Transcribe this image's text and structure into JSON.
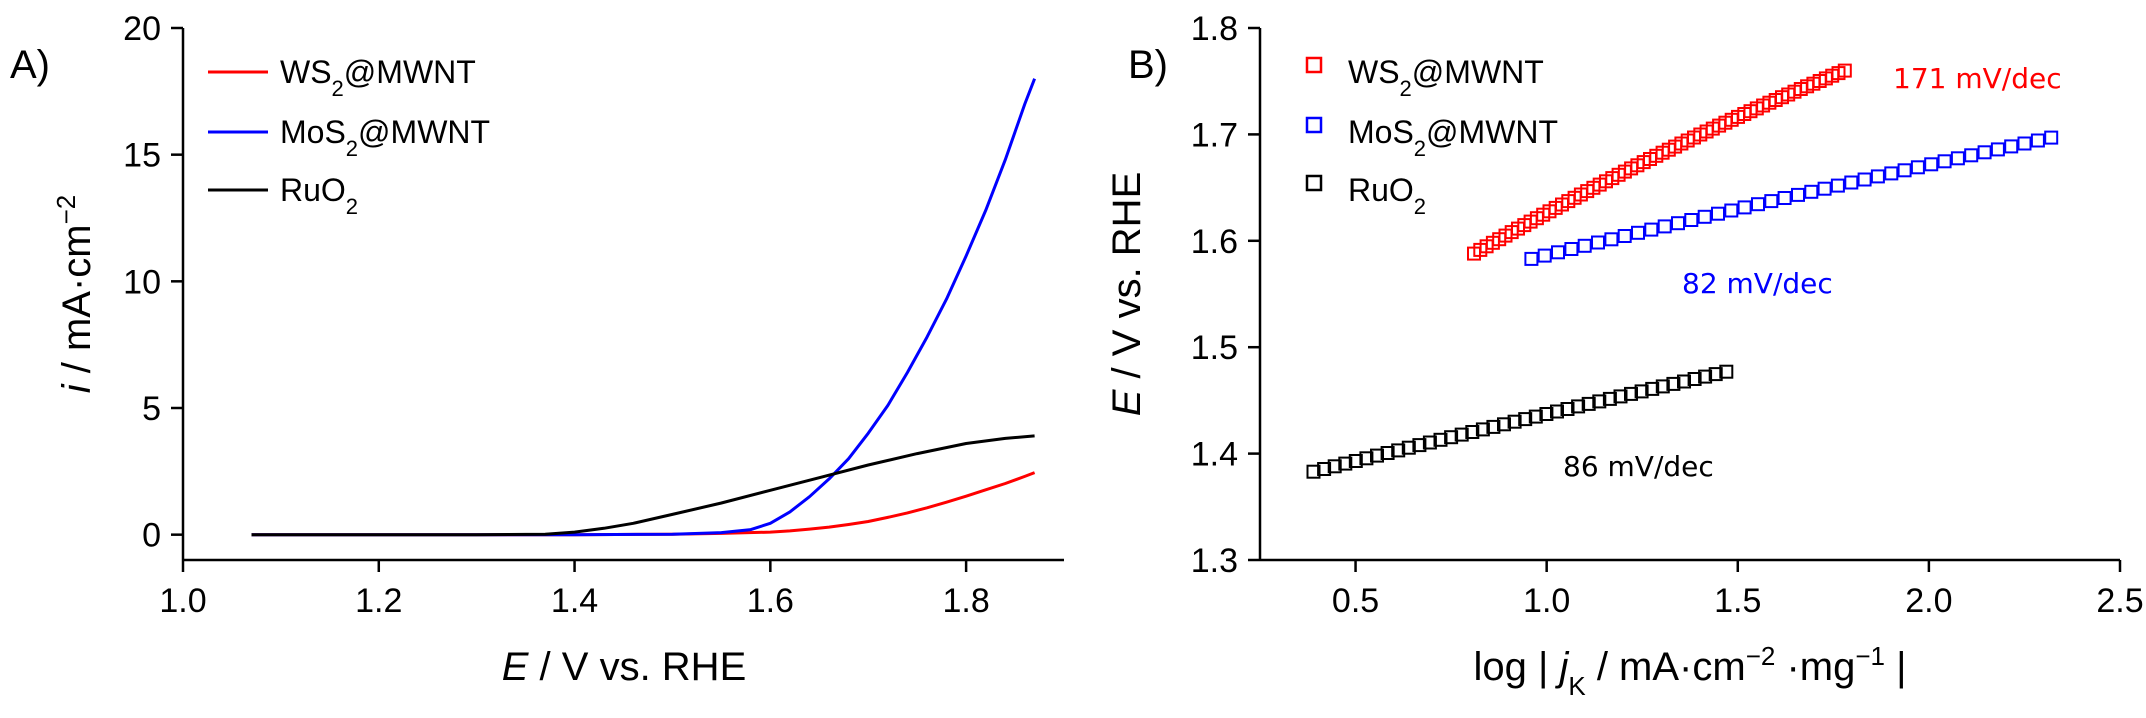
{
  "chart_data": [
    {
      "panel_label": "A)",
      "type": "line",
      "xlabel_italic": "E",
      "xlabel_rest": " / V vs. RHE",
      "ylabel_italic": "i",
      "ylabel_rest": " / mA·cm",
      "ylabel_sup": "−2",
      "xlim": [
        1.0,
        1.9
      ],
      "ylim": [
        -1,
        20
      ],
      "xticks": [
        1.0,
        1.2,
        1.4,
        1.6,
        1.8
      ],
      "xtick_labels": [
        "1.0",
        "1.2",
        "1.4",
        "1.6",
        "1.8"
      ],
      "yticks": [
        0,
        5,
        10,
        15,
        20
      ],
      "ytick_labels": [
        "0",
        "5",
        "10",
        "15",
        "20"
      ],
      "legend_position": "top-left",
      "series": [
        {
          "name": "WS2@MWNT",
          "legend_base": "WS",
          "legend_sub": "2",
          "legend_tail": "@MWNT",
          "color": "#ff0000",
          "x": [
            1.07,
            1.2,
            1.4,
            1.5,
            1.55,
            1.6,
            1.62,
            1.64,
            1.66,
            1.68,
            1.7,
            1.72,
            1.74,
            1.76,
            1.78,
            1.8,
            1.82,
            1.84,
            1.86,
            1.87
          ],
          "y": [
            0,
            0,
            0,
            0.02,
            0.05,
            0.1,
            0.15,
            0.22,
            0.3,
            0.4,
            0.52,
            0.68,
            0.86,
            1.06,
            1.28,
            1.52,
            1.77,
            2.02,
            2.3,
            2.45
          ]
        },
        {
          "name": "MoS2@MWNT",
          "legend_base": "MoS",
          "legend_sub": "2",
          "legend_tail": "@MWNT",
          "color": "#0000ff",
          "x": [
            1.07,
            1.2,
            1.4,
            1.5,
            1.55,
            1.58,
            1.6,
            1.62,
            1.64,
            1.66,
            1.68,
            1.7,
            1.72,
            1.74,
            1.76,
            1.78,
            1.8,
            1.82,
            1.84,
            1.86,
            1.87
          ],
          "y": [
            0,
            0,
            0,
            0.02,
            0.08,
            0.2,
            0.45,
            0.9,
            1.5,
            2.2,
            3.0,
            4.0,
            5.1,
            6.4,
            7.8,
            9.3,
            11.0,
            12.8,
            14.8,
            17.0,
            18.0
          ]
        },
        {
          "name": "RuO2",
          "legend_base": "RuO",
          "legend_sub": "2",
          "legend_tail": "",
          "color": "#000000",
          "x": [
            1.07,
            1.2,
            1.3,
            1.37,
            1.4,
            1.43,
            1.46,
            1.5,
            1.55,
            1.6,
            1.65,
            1.7,
            1.75,
            1.8,
            1.84,
            1.87
          ],
          "y": [
            0,
            0,
            0,
            0.02,
            0.1,
            0.25,
            0.45,
            0.8,
            1.25,
            1.75,
            2.25,
            2.75,
            3.2,
            3.6,
            3.8,
            3.9
          ]
        }
      ]
    },
    {
      "panel_label": "B)",
      "type": "scatter",
      "xlabel": "log | ",
      "xlabel_italic": "j",
      "xlabel_sub": "K",
      "xlabel_mid": "  / mA·cm",
      "xlabel_sup1": "−2",
      "xlabel_mid2": " ·mg",
      "xlabel_sup2": "−1",
      "xlabel_tail": " |",
      "ylabel_italic": "E",
      "ylabel_rest": " / V vs. RHE",
      "xlim": [
        0.25,
        2.5
      ],
      "ylim": [
        1.3,
        1.8
      ],
      "xticks": [
        0.5,
        1.0,
        1.5,
        2.0,
        2.5
      ],
      "xtick_labels": [
        "0.5",
        "1.0",
        "1.5",
        "2.0",
        "2.5"
      ],
      "yticks": [
        1.3,
        1.4,
        1.5,
        1.6,
        1.7,
        1.8
      ],
      "ytick_labels": [
        "1.3",
        "1.4",
        "1.5",
        "1.6",
        "1.7",
        "1.8"
      ],
      "legend_position": "top-left",
      "series": [
        {
          "name": "WS2@MWNT",
          "legend_base": "WS",
          "legend_sub": "2",
          "legend_tail": "@MWNT",
          "color": "#ff0000",
          "x_start": 0.81,
          "x_end": 1.78,
          "y_start": 1.588,
          "y_end": 1.76,
          "y_start_slope": 0.17,
          "count": 60,
          "tafel_label": "171 mV/dec"
        },
        {
          "name": "MoS2@MWNT",
          "legend_base": "MoS",
          "legend_sub": "2",
          "legend_tail": "@MWNT",
          "color": "#0000ff",
          "x_start": 0.96,
          "x_end": 2.32,
          "y_start": 1.583,
          "y_end": 1.697,
          "y_start_slope": 0.06,
          "count": 40,
          "tafel_label": "82 mV/dec"
        },
        {
          "name": "RuO2",
          "legend_base": "RuO",
          "legend_sub": "2",
          "legend_tail": "",
          "color": "#000000",
          "x_start": 0.39,
          "x_end": 1.47,
          "y_start": 1.383,
          "y_end": 1.477,
          "y_start_slope": 0.05,
          "count": 40,
          "tafel_label": "86 mV/dec"
        }
      ]
    }
  ]
}
